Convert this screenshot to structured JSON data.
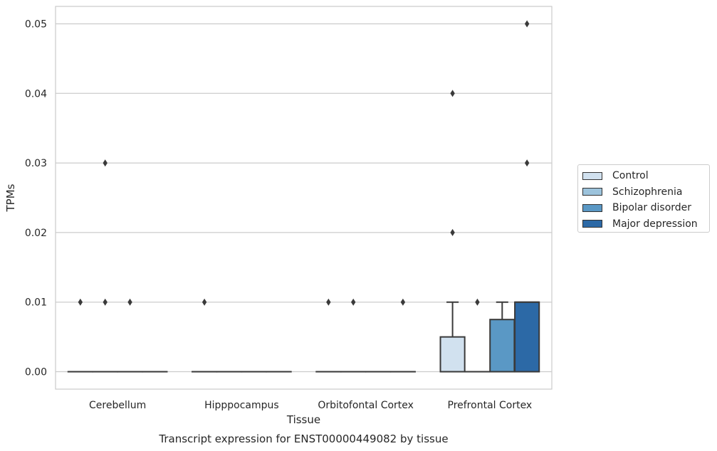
{
  "chart_data": {
    "type": "box",
    "xlabel": "Tissue",
    "ylabel": "TPMs",
    "caption": "Transcript expression for ENST00000449082 by tissue",
    "categories": [
      "Cerebellum",
      "Hipppocampus",
      "Orbitofontal Cortex",
      "Prefrontal Cortex"
    ],
    "ylim": [
      -0.0025,
      0.0525
    ],
    "yticks": [
      0.0,
      0.01,
      0.02,
      0.03,
      0.04,
      0.05
    ],
    "ytick_labels": [
      "0.00",
      "0.01",
      "0.02",
      "0.03",
      "0.04",
      "0.05"
    ],
    "grid": true,
    "legend_position": "right",
    "series": [
      {
        "name": "Control",
        "color": "#d1e1ef",
        "boxes": [
          {
            "q1": 0,
            "median": 0,
            "q3": 0,
            "whisker_low": 0,
            "whisker_high": 0,
            "outliers": [
              0.01
            ]
          },
          {
            "q1": 0,
            "median": 0,
            "q3": 0,
            "whisker_low": 0,
            "whisker_high": 0,
            "outliers": [
              0.01
            ]
          },
          {
            "q1": 0,
            "median": 0,
            "q3": 0,
            "whisker_low": 0,
            "whisker_high": 0,
            "outliers": [
              0.01
            ]
          },
          {
            "q1": 0,
            "median": 0,
            "q3": 0.005,
            "whisker_low": 0,
            "whisker_high": 0.01,
            "outliers": [
              0.02,
              0.04
            ]
          }
        ]
      },
      {
        "name": "Schizophrenia",
        "color": "#9cc3dc",
        "boxes": [
          {
            "q1": 0,
            "median": 0,
            "q3": 0,
            "whisker_low": 0,
            "whisker_high": 0,
            "outliers": [
              0.01,
              0.03
            ]
          },
          {
            "q1": 0,
            "median": 0,
            "q3": 0,
            "whisker_low": 0,
            "whisker_high": 0,
            "outliers": []
          },
          {
            "q1": 0,
            "median": 0,
            "q3": 0,
            "whisker_low": 0,
            "whisker_high": 0,
            "outliers": [
              0.01
            ]
          },
          {
            "q1": 0,
            "median": 0,
            "q3": 0,
            "whisker_low": 0,
            "whisker_high": 0,
            "outliers": [
              0.01
            ]
          }
        ]
      },
      {
        "name": "Bipolar disorder",
        "color": "#5a98c5",
        "boxes": [
          {
            "q1": 0,
            "median": 0,
            "q3": 0,
            "whisker_low": 0,
            "whisker_high": 0,
            "outliers": [
              0.01
            ]
          },
          {
            "q1": 0,
            "median": 0,
            "q3": 0,
            "whisker_low": 0,
            "whisker_high": 0,
            "outliers": []
          },
          {
            "q1": 0,
            "median": 0,
            "q3": 0,
            "whisker_low": 0,
            "whisker_high": 0,
            "outliers": []
          },
          {
            "q1": 0,
            "median": 0,
            "q3": 0.0075,
            "whisker_low": 0,
            "whisker_high": 0.01,
            "outliers": []
          }
        ]
      },
      {
        "name": "Major depression",
        "color": "#2c69a6",
        "boxes": [
          {
            "q1": 0,
            "median": 0,
            "q3": 0,
            "whisker_low": 0,
            "whisker_high": 0,
            "outliers": []
          },
          {
            "q1": 0,
            "median": 0,
            "q3": 0,
            "whisker_low": 0,
            "whisker_high": 0,
            "outliers": []
          },
          {
            "q1": 0,
            "median": 0,
            "q3": 0,
            "whisker_low": 0,
            "whisker_high": 0,
            "outliers": [
              0.01
            ]
          },
          {
            "q1": 0,
            "median": 0.01,
            "q3": 0.01,
            "whisker_low": 0,
            "whisker_high": 0.01,
            "outliers": [
              0.03,
              0.05
            ]
          }
        ]
      }
    ]
  }
}
